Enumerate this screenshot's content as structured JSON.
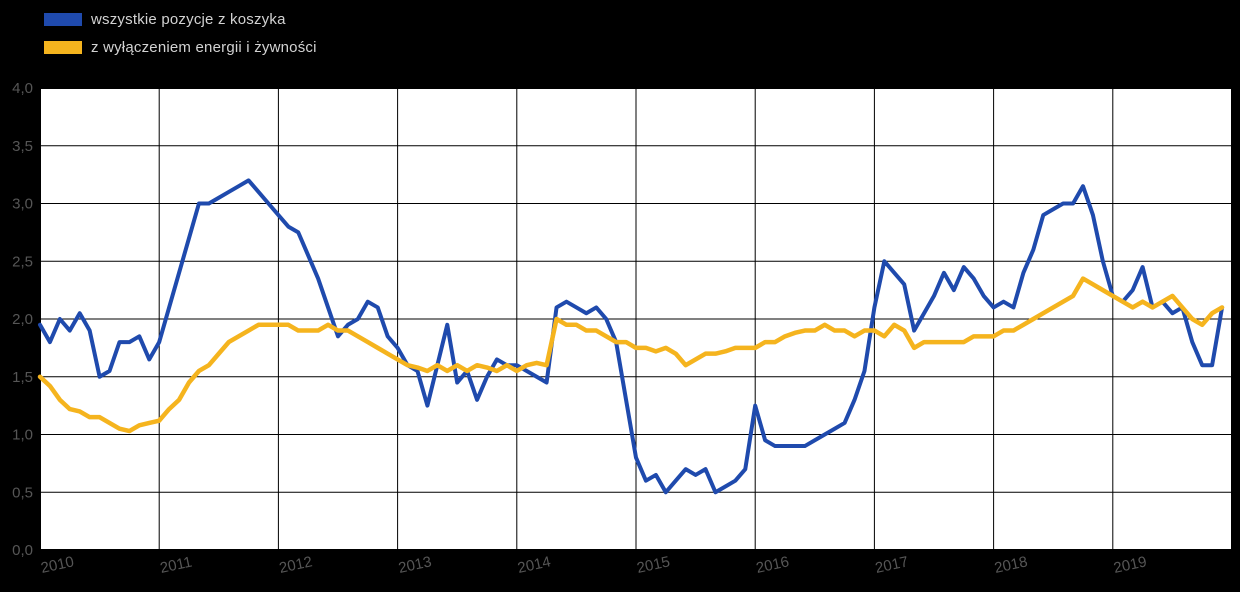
{
  "legend": {
    "items": [
      {
        "label": "wszystkie pozycje z koszyka",
        "color": "#1f4aad"
      },
      {
        "label": "z wyłączeniem energii i żywności",
        "color": "#f5b41e"
      }
    ]
  },
  "chart_data": {
    "type": "line",
    "title": "",
    "xlabel": "",
    "ylabel": "",
    "ylim": [
      0,
      4
    ],
    "y_step": 0.5,
    "grid": true,
    "legend_position": "top-left",
    "background": "#000000",
    "plot_background": "#ffffff",
    "x_tick_labels": [
      "2010",
      "2011",
      "2012",
      "2013",
      "2014",
      "2015",
      "2016",
      "2017",
      "2018",
      "2019"
    ],
    "y_tick_labels": [
      "0,0",
      "0,5",
      "1,0",
      "1,5",
      "2,0",
      "2,5",
      "3,0",
      "3,5",
      "4,0"
    ],
    "frequency": "monthly",
    "series": [
      {
        "name": "wszystkie pozycje z koszyka",
        "color": "#1f4aad",
        "values": [
          1.95,
          1.8,
          2.0,
          1.9,
          2.05,
          1.9,
          1.5,
          1.55,
          1.8,
          1.8,
          1.85,
          1.65,
          1.8,
          2.1,
          2.4,
          2.7,
          3.0,
          3.0,
          3.05,
          3.1,
          3.15,
          3.2,
          3.1,
          3.0,
          2.9,
          2.8,
          2.75,
          2.55,
          2.35,
          2.1,
          1.85,
          1.95,
          2.0,
          2.15,
          2.1,
          1.85,
          1.75,
          1.6,
          1.55,
          1.25,
          1.6,
          1.95,
          1.45,
          1.55,
          1.3,
          1.5,
          1.65,
          1.6,
          1.6,
          1.55,
          1.5,
          1.45,
          2.1,
          2.15,
          2.1,
          2.05,
          2.1,
          2.0,
          1.8,
          1.3,
          0.8,
          0.6,
          0.65,
          0.5,
          0.6,
          0.7,
          0.65,
          0.7,
          0.5,
          0.55,
          0.6,
          0.7,
          1.25,
          0.95,
          0.9,
          0.9,
          0.9,
          0.9,
          0.95,
          1.0,
          1.05,
          1.1,
          1.3,
          1.55,
          2.1,
          2.5,
          2.4,
          2.3,
          1.9,
          2.05,
          2.2,
          2.4,
          2.25,
          2.45,
          2.35,
          2.2,
          2.1,
          2.15,
          2.1,
          2.4,
          2.6,
          2.9,
          2.95,
          3.0,
          3.0,
          3.15,
          2.9,
          2.5,
          2.2,
          2.15,
          2.25,
          2.45,
          2.1,
          2.15,
          2.05,
          2.1,
          1.8,
          1.6,
          1.6,
          2.1
        ]
      },
      {
        "name": "z wyłączeniem energii i żywności",
        "color": "#f5b41e",
        "values": [
          1.5,
          1.42,
          1.3,
          1.22,
          1.2,
          1.15,
          1.15,
          1.1,
          1.05,
          1.03,
          1.08,
          1.1,
          1.12,
          1.22,
          1.3,
          1.45,
          1.55,
          1.6,
          1.7,
          1.8,
          1.85,
          1.9,
          1.95,
          1.95,
          1.95,
          1.95,
          1.9,
          1.9,
          1.9,
          1.95,
          1.9,
          1.9,
          1.85,
          1.8,
          1.75,
          1.7,
          1.65,
          1.6,
          1.58,
          1.55,
          1.6,
          1.55,
          1.6,
          1.55,
          1.6,
          1.58,
          1.55,
          1.6,
          1.55,
          1.6,
          1.62,
          1.6,
          2.0,
          1.95,
          1.95,
          1.9,
          1.9,
          1.85,
          1.8,
          1.8,
          1.75,
          1.75,
          1.72,
          1.75,
          1.7,
          1.6,
          1.65,
          1.7,
          1.7,
          1.72,
          1.75,
          1.75,
          1.75,
          1.8,
          1.8,
          1.85,
          1.88,
          1.9,
          1.9,
          1.95,
          1.9,
          1.9,
          1.85,
          1.9,
          1.9,
          1.85,
          1.95,
          1.9,
          1.75,
          1.8,
          1.8,
          1.8,
          1.8,
          1.8,
          1.85,
          1.85,
          1.85,
          1.9,
          1.9,
          1.95,
          2.0,
          2.05,
          2.1,
          2.15,
          2.2,
          2.35,
          2.3,
          2.25,
          2.2,
          2.15,
          2.1,
          2.15,
          2.1,
          2.15,
          2.2,
          2.1,
          2.0,
          1.95,
          2.05,
          2.1
        ]
      }
    ]
  }
}
